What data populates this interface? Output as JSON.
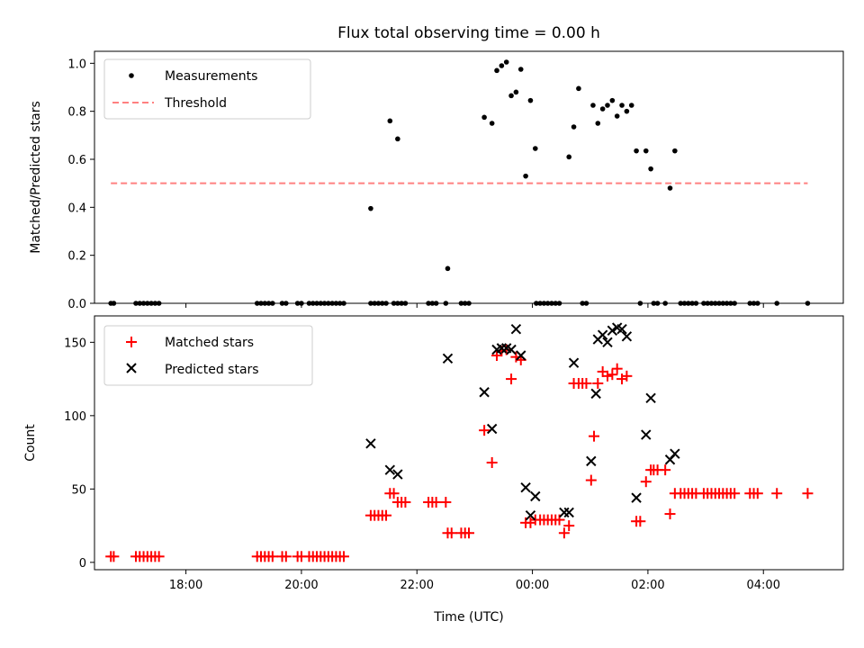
{
  "chart_data": [
    {
      "type": "scatter",
      "title": "Flux total observing time = 0.00 h",
      "xlabel": "",
      "ylabel": "Matched/Predicted stars",
      "xlim": [
        "16:25",
        "05:23"
      ],
      "ylim": [
        0,
        1.05
      ],
      "yticks": [
        "0.0",
        "0.2",
        "0.4",
        "0.6",
        "0.8",
        "1.0"
      ],
      "x_tick_labels_shown": false,
      "legend_position": "top-left",
      "grid": false,
      "series": [
        {
          "name": "Measurements",
          "kind": "scatter",
          "color": "#000000",
          "marker": "dot",
          "points": [
            [
              "16:42",
              0.0
            ],
            [
              "16:45",
              0.0
            ],
            [
              "17:08",
              0.0
            ],
            [
              "17:12",
              0.0
            ],
            [
              "17:16",
              0.0
            ],
            [
              "17:20",
              0.0
            ],
            [
              "17:24",
              0.0
            ],
            [
              "17:28",
              0.0
            ],
            [
              "17:32",
              0.0
            ],
            [
              "19:14",
              0.0
            ],
            [
              "19:18",
              0.0
            ],
            [
              "19:22",
              0.0
            ],
            [
              "19:26",
              0.0
            ],
            [
              "19:30",
              0.0
            ],
            [
              "19:40",
              0.0
            ],
            [
              "19:44",
              0.0
            ],
            [
              "19:56",
              0.0
            ],
            [
              "20:00",
              0.0
            ],
            [
              "20:08",
              0.0
            ],
            [
              "20:12",
              0.0
            ],
            [
              "20:16",
              0.0
            ],
            [
              "20:20",
              0.0
            ],
            [
              "20:24",
              0.0
            ],
            [
              "20:28",
              0.0
            ],
            [
              "20:32",
              0.0
            ],
            [
              "20:36",
              0.0
            ],
            [
              "20:40",
              0.0
            ],
            [
              "20:44",
              0.0
            ],
            [
              "21:12",
              0.0
            ],
            [
              "21:16",
              0.0
            ],
            [
              "21:20",
              0.0
            ],
            [
              "21:24",
              0.0
            ],
            [
              "21:28",
              0.0
            ],
            [
              "21:36",
              0.0
            ],
            [
              "21:40",
              0.0
            ],
            [
              "21:44",
              0.0
            ],
            [
              "21:48",
              0.0
            ],
            [
              "22:12",
              0.0
            ],
            [
              "22:16",
              0.0
            ],
            [
              "22:20",
              0.0
            ],
            [
              "22:30",
              0.0
            ],
            [
              "22:46",
              0.0
            ],
            [
              "22:50",
              0.0
            ],
            [
              "22:54",
              0.0
            ],
            [
              "00:04",
              0.0
            ],
            [
              "00:08",
              0.0
            ],
            [
              "00:12",
              0.0
            ],
            [
              "00:16",
              0.0
            ],
            [
              "00:20",
              0.0
            ],
            [
              "00:24",
              0.0
            ],
            [
              "00:28",
              0.0
            ],
            [
              "00:52",
              0.0
            ],
            [
              "00:56",
              0.0
            ],
            [
              "01:52",
              0.0
            ],
            [
              "02:06",
              0.0
            ],
            [
              "02:10",
              0.0
            ],
            [
              "02:18",
              0.0
            ],
            [
              "02:34",
              0.0
            ],
            [
              "02:38",
              0.0
            ],
            [
              "02:42",
              0.0
            ],
            [
              "02:46",
              0.0
            ],
            [
              "02:50",
              0.0
            ],
            [
              "02:58",
              0.0
            ],
            [
              "03:02",
              0.0
            ],
            [
              "03:06",
              0.0
            ],
            [
              "03:10",
              0.0
            ],
            [
              "03:14",
              0.0
            ],
            [
              "03:18",
              0.0
            ],
            [
              "03:22",
              0.0
            ],
            [
              "03:26",
              0.0
            ],
            [
              "03:30",
              0.0
            ],
            [
              "03:46",
              0.0
            ],
            [
              "03:50",
              0.0
            ],
            [
              "03:54",
              0.0
            ],
            [
              "04:14",
              0.0
            ],
            [
              "04:46",
              0.0
            ],
            [
              "21:12",
              0.395
            ],
            [
              "21:32",
              0.76
            ],
            [
              "21:40",
              0.685
            ],
            [
              "22:32",
              0.145
            ],
            [
              "23:10",
              0.775
            ],
            [
              "23:18",
              0.75
            ],
            [
              "23:23",
              0.97
            ],
            [
              "23:28",
              0.99
            ],
            [
              "23:33",
              1.005
            ],
            [
              "23:38",
              0.865
            ],
            [
              "23:43",
              0.88
            ],
            [
              "23:48",
              0.975
            ],
            [
              "23:53",
              0.53
            ],
            [
              "23:58",
              0.845
            ],
            [
              "00:03",
              0.645
            ],
            [
              "00:38",
              0.61
            ],
            [
              "00:43",
              0.735
            ],
            [
              "00:48",
              0.895
            ],
            [
              "01:03",
              0.825
            ],
            [
              "01:08",
              0.75
            ],
            [
              "01:13",
              0.81
            ],
            [
              "01:18",
              0.825
            ],
            [
              "01:23",
              0.845
            ],
            [
              "01:28",
              0.78
            ],
            [
              "01:33",
              0.825
            ],
            [
              "01:38",
              0.8
            ],
            [
              "01:43",
              0.825
            ],
            [
              "01:48",
              0.635
            ],
            [
              "01:58",
              0.635
            ],
            [
              "02:03",
              0.56
            ],
            [
              "02:23",
              0.48
            ],
            [
              "02:28",
              0.635
            ]
          ]
        },
        {
          "name": "Threshold",
          "kind": "line",
          "color": "#ff8080",
          "dashed": true,
          "points": [
            [
              "16:42",
              0.5
            ],
            [
              "04:46",
              0.5
            ]
          ]
        }
      ]
    },
    {
      "type": "scatter",
      "title": "",
      "xlabel": "Time (UTC)",
      "ylabel": "Count",
      "xlim": [
        "16:25",
        "05:23"
      ],
      "ylim": [
        -5,
        168
      ],
      "yticks": [
        "0",
        "50",
        "100",
        "150"
      ],
      "xticks": [
        "18:00",
        "20:00",
        "22:00",
        "00:00",
        "02:00",
        "04:00"
      ],
      "legend_position": "top-left",
      "grid": false,
      "series": [
        {
          "name": "Matched stars",
          "kind": "scatter",
          "color": "#ff0000",
          "marker": "plus",
          "points": [
            [
              "16:42",
              4
            ],
            [
              "16:45",
              4
            ],
            [
              "17:08",
              4
            ],
            [
              "17:12",
              4
            ],
            [
              "17:16",
              4
            ],
            [
              "17:20",
              4
            ],
            [
              "17:24",
              4
            ],
            [
              "17:28",
              4
            ],
            [
              "17:32",
              4
            ],
            [
              "19:14",
              4
            ],
            [
              "19:18",
              4
            ],
            [
              "19:22",
              4
            ],
            [
              "19:26",
              4
            ],
            [
              "19:30",
              4
            ],
            [
              "19:40",
              4
            ],
            [
              "19:44",
              4
            ],
            [
              "19:56",
              4
            ],
            [
              "20:00",
              4
            ],
            [
              "20:08",
              4
            ],
            [
              "20:12",
              4
            ],
            [
              "20:16",
              4
            ],
            [
              "20:20",
              4
            ],
            [
              "20:24",
              4
            ],
            [
              "20:28",
              4
            ],
            [
              "20:32",
              4
            ],
            [
              "20:36",
              4
            ],
            [
              "20:40",
              4
            ],
            [
              "20:44",
              4
            ],
            [
              "21:12",
              32
            ],
            [
              "21:16",
              32
            ],
            [
              "21:20",
              32
            ],
            [
              "21:24",
              32
            ],
            [
              "21:28",
              32
            ],
            [
              "21:32",
              47
            ],
            [
              "21:36",
              47
            ],
            [
              "21:40",
              41
            ],
            [
              "21:44",
              41
            ],
            [
              "21:48",
              41
            ],
            [
              "22:12",
              41
            ],
            [
              "22:16",
              41
            ],
            [
              "22:20",
              41
            ],
            [
              "22:30",
              41
            ],
            [
              "22:32",
              20
            ],
            [
              "22:36",
              20
            ],
            [
              "22:46",
              20
            ],
            [
              "22:50",
              20
            ],
            [
              "22:54",
              20
            ],
            [
              "23:10",
              90
            ],
            [
              "23:18",
              68
            ],
            [
              "23:23",
              141
            ],
            [
              "23:28",
              144
            ],
            [
              "23:33",
              145
            ],
            [
              "23:38",
              125
            ],
            [
              "23:43",
              140
            ],
            [
              "23:48",
              138
            ],
            [
              "23:53",
              27
            ],
            [
              "23:58",
              27
            ],
            [
              "00:03",
              29
            ],
            [
              "00:08",
              29
            ],
            [
              "00:12",
              29
            ],
            [
              "00:16",
              29
            ],
            [
              "00:20",
              29
            ],
            [
              "00:24",
              29
            ],
            [
              "00:28",
              29
            ],
            [
              "00:33",
              20
            ],
            [
              "00:38",
              25
            ],
            [
              "00:43",
              122
            ],
            [
              "00:48",
              122
            ],
            [
              "00:52",
              122
            ],
            [
              "00:56",
              122
            ],
            [
              "01:01",
              56
            ],
            [
              "01:04",
              86
            ],
            [
              "01:08",
              122
            ],
            [
              "01:13",
              130
            ],
            [
              "01:18",
              127
            ],
            [
              "01:23",
              128
            ],
            [
              "01:28",
              132
            ],
            [
              "01:33",
              125
            ],
            [
              "01:38",
              127
            ],
            [
              "01:48",
              28
            ],
            [
              "01:52",
              28
            ],
            [
              "01:58",
              55
            ],
            [
              "02:03",
              63
            ],
            [
              "02:06",
              63
            ],
            [
              "02:10",
              63
            ],
            [
              "02:18",
              63
            ],
            [
              "02:23",
              33
            ],
            [
              "02:28",
              47
            ],
            [
              "02:34",
              47
            ],
            [
              "02:38",
              47
            ],
            [
              "02:42",
              47
            ],
            [
              "02:46",
              47
            ],
            [
              "02:50",
              47
            ],
            [
              "02:58",
              47
            ],
            [
              "03:02",
              47
            ],
            [
              "03:06",
              47
            ],
            [
              "03:10",
              47
            ],
            [
              "03:14",
              47
            ],
            [
              "03:18",
              47
            ],
            [
              "03:22",
              47
            ],
            [
              "03:26",
              47
            ],
            [
              "03:30",
              47
            ],
            [
              "03:46",
              47
            ],
            [
              "03:50",
              47
            ],
            [
              "03:54",
              47
            ],
            [
              "04:14",
              47
            ],
            [
              "04:46",
              47
            ]
          ]
        },
        {
          "name": "Predicted stars",
          "kind": "scatter",
          "color": "#000000",
          "marker": "x",
          "points": [
            [
              "21:12",
              81
            ],
            [
              "21:32",
              63
            ],
            [
              "21:40",
              60
            ],
            [
              "22:32",
              139
            ],
            [
              "23:10",
              116
            ],
            [
              "23:18",
              91
            ],
            [
              "23:23",
              145
            ],
            [
              "23:28",
              146
            ],
            [
              "23:33",
              146
            ],
            [
              "23:38",
              145
            ],
            [
              "23:43",
              159
            ],
            [
              "23:48",
              141
            ],
            [
              "23:53",
              51
            ],
            [
              "23:58",
              32
            ],
            [
              "00:03",
              45
            ],
            [
              "00:33",
              34
            ],
            [
              "00:38",
              34
            ],
            [
              "00:43",
              136
            ],
            [
              "01:01",
              69
            ],
            [
              "01:06",
              115
            ],
            [
              "01:08",
              152
            ],
            [
              "01:13",
              155
            ],
            [
              "01:18",
              150
            ],
            [
              "01:23",
              158
            ],
            [
              "01:28",
              160
            ],
            [
              "01:33",
              159
            ],
            [
              "01:38",
              154
            ],
            [
              "01:48",
              44
            ],
            [
              "01:58",
              87
            ],
            [
              "02:03",
              112
            ],
            [
              "02:23",
              70
            ],
            [
              "02:28",
              74
            ]
          ]
        }
      ]
    }
  ]
}
